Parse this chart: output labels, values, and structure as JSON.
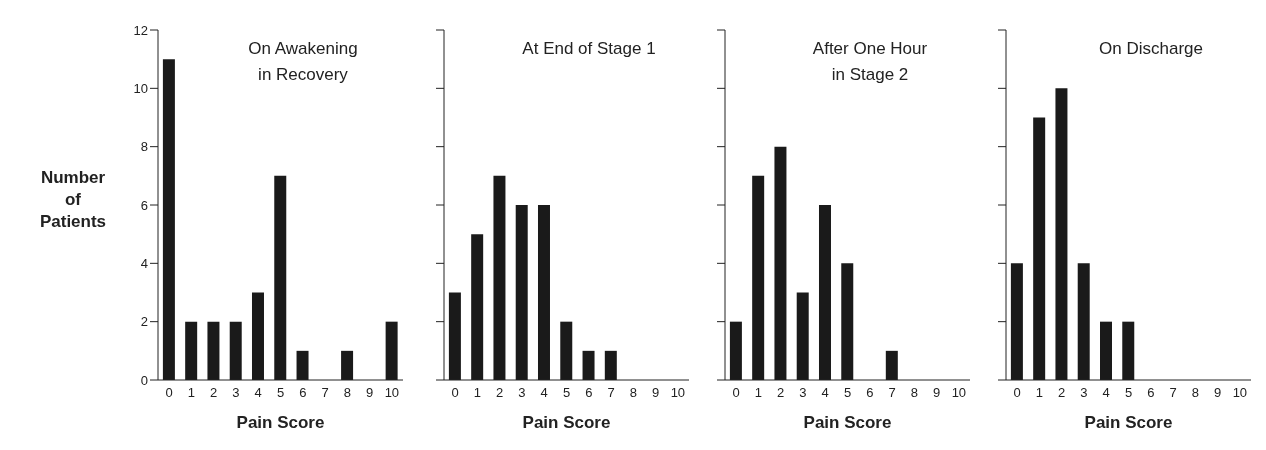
{
  "chart_data": [
    {
      "type": "bar",
      "title": "On Awakening\nin Recovery",
      "xlabel": "Pain Score",
      "ylabel": "Number of Patients",
      "categories": [
        "0",
        "1",
        "2",
        "3",
        "4",
        "5",
        "6",
        "7",
        "8",
        "9",
        "10"
      ],
      "values": [
        11,
        2,
        2,
        2,
        3,
        7,
        1,
        0,
        1,
        0,
        2
      ],
      "color": "#1a1a1a",
      "ylim": [
        0,
        12
      ],
      "yticks": [
        0,
        2,
        4,
        6,
        8,
        10,
        12
      ],
      "grid": false
    },
    {
      "type": "bar",
      "title": "At End of Stage 1",
      "xlabel": "Pain Score",
      "categories": [
        "0",
        "1",
        "2",
        "3",
        "4",
        "5",
        "6",
        "7",
        "8",
        "9",
        "10"
      ],
      "values": [
        3,
        5,
        7,
        6,
        6,
        2,
        1,
        1,
        0,
        0,
        0
      ],
      "color": "#1a1a1a",
      "ylim": [
        0,
        12
      ],
      "yticks": [
        0,
        2,
        4,
        6,
        8,
        10,
        12
      ],
      "grid": false,
      "tick_labels": "x"
    },
    {
      "type": "bar",
      "title": "After One Hour\nin Stage 2",
      "xlabel": "Pain Score",
      "categories": [
        "0",
        "1",
        "2",
        "3",
        "4",
        "5",
        "6",
        "7",
        "8",
        "9",
        "10"
      ],
      "values": [
        2,
        7,
        8,
        3,
        6,
        4,
        0,
        1,
        0,
        0,
        0
      ],
      "color": "#1a1a1a",
      "ylim": [
        0,
        12
      ],
      "yticks": [
        0,
        2,
        4,
        6,
        8,
        10,
        12
      ],
      "grid": false,
      "tick_labels": "x"
    },
    {
      "type": "bar",
      "title": "On Discharge",
      "xlabel": "Pain Score",
      "categories": [
        "0",
        "1",
        "2",
        "3",
        "4",
        "5",
        "6",
        "7",
        "8",
        "9",
        "10"
      ],
      "values": [
        4,
        9,
        10,
        4,
        2,
        2,
        0,
        0,
        0,
        0,
        0
      ],
      "color": "#1a1a1a",
      "ylim": [
        0,
        12
      ],
      "yticks": [
        0,
        2,
        4,
        6,
        8,
        10,
        12
      ],
      "grid": false,
      "tick_labels": "x"
    }
  ]
}
